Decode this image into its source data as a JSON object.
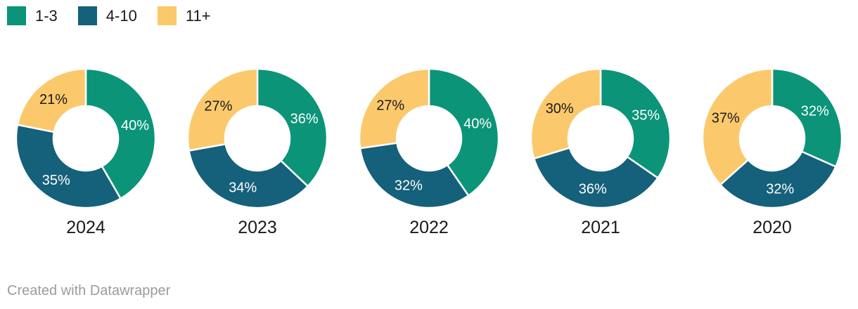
{
  "legend": {
    "items": [
      {
        "label": "1-3",
        "color": "#0b9478"
      },
      {
        "label": "4-10",
        "color": "#15607a"
      },
      {
        "label": "11+",
        "color": "#fbc96c"
      }
    ]
  },
  "chart_data": {
    "type": "pie",
    "variant": "donut-small-multiples",
    "legend_position": "top-left",
    "start_angle": "12-oclock",
    "direction": "clockwise",
    "categories": [
      "2024",
      "2023",
      "2022",
      "2021",
      "2020"
    ],
    "series": [
      {
        "name": "1-3",
        "color": "#0b9478",
        "label_color": "#ffffff",
        "values": [
          40,
          36,
          40,
          35,
          32
        ]
      },
      {
        "name": "4-10",
        "color": "#15607a",
        "label_color": "#ffffff",
        "values": [
          35,
          34,
          32,
          36,
          32
        ]
      },
      {
        "name": "11+",
        "color": "#fbc96c",
        "label_color": "#1a1a1a",
        "values": [
          21,
          27,
          27,
          30,
          37
        ]
      }
    ],
    "value_suffix": "%",
    "separator_color": "#ffffff"
  },
  "footer": {
    "text": "Created with Datawrapper"
  }
}
